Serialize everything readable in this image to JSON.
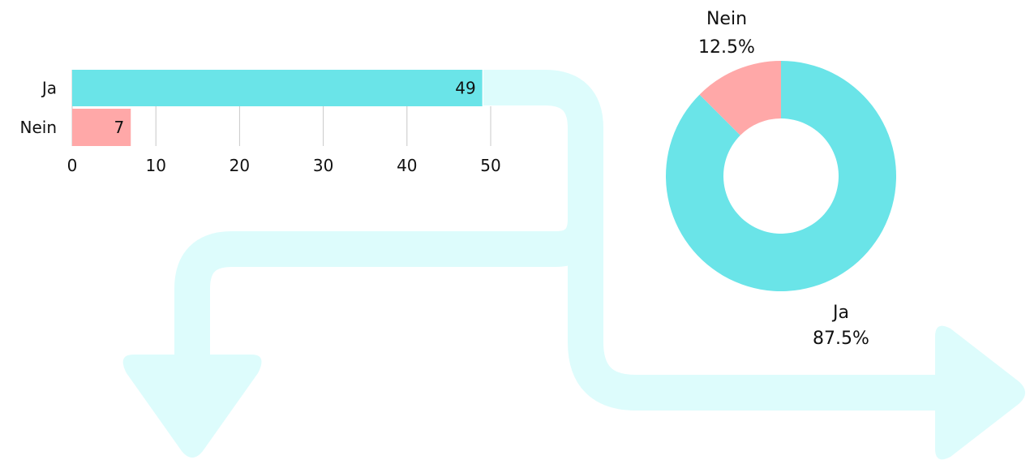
{
  "colors": {
    "ja": "#6ae4e8",
    "nein": "#ffa8a8",
    "arrow": "#ddfcfc",
    "grid": "#c8c8c8",
    "text": "#111111"
  },
  "chart_data": [
    {
      "type": "bar",
      "orientation": "horizontal",
      "categories": [
        "Ja",
        "Nein"
      ],
      "values": [
        49,
        7
      ],
      "xlim": [
        0,
        50
      ],
      "xticks": [
        0,
        10,
        20,
        30,
        40,
        50
      ],
      "grid": true,
      "data_labels": true
    },
    {
      "type": "pie",
      "donut": true,
      "slices": [
        {
          "label": "Ja",
          "value": 87.5,
          "value_label": "87.5%"
        },
        {
          "label": "Nein",
          "value": 12.5,
          "value_label": "12.5%"
        }
      ]
    }
  ],
  "decorations": {
    "arrows": [
      "arrow-down-icon",
      "arrow-right-icon"
    ]
  }
}
